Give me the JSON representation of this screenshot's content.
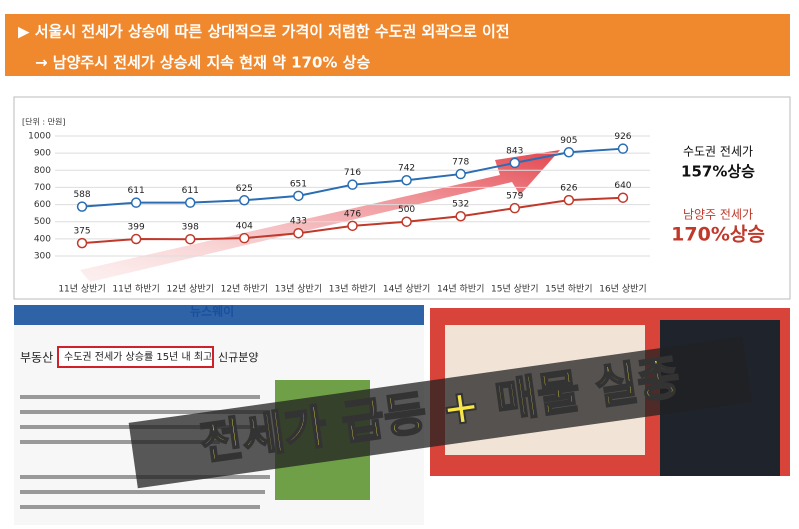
{
  "header": {
    "line1": "▶ 서울시 전세가 상승에 따른 상대적으로 가격이 저렴한 수도권 외곽으로 이전",
    "line2": "→ 남양주시 전세가 상승세 지속 현재 약 170% 상승"
  },
  "chart_data": {
    "type": "line",
    "unit_label": "[단위 : 만원]",
    "categories": [
      "11년 상반기",
      "11년 하반기",
      "12년 상반기",
      "12년 하반기",
      "13년 상반기",
      "13년 하반기",
      "14년 상반기",
      "14년 하반기",
      "15년 상반기",
      "15년 하반기",
      "16년 상반기"
    ],
    "series": [
      {
        "name": "수도권 전세가",
        "color": "#2a6db3",
        "values": [
          588,
          611,
          611,
          625,
          651,
          716,
          742,
          778,
          843,
          905,
          926
        ]
      },
      {
        "name": "남양주 전세가",
        "color": "#c0392b",
        "values": [
          375,
          399,
          398,
          404,
          433,
          476,
          500,
          532,
          579,
          626,
          640
        ]
      }
    ],
    "annotations": [
      "157%상승",
      "170%상승"
    ],
    "ylim": [
      300,
      1000
    ],
    "yticks": [
      300,
      400,
      500,
      600,
      700,
      800,
      900,
      1000
    ],
    "grid": true
  },
  "news": {
    "logo": "뉴스웨이",
    "section": "부동산",
    "headline": "수도권 전세가 상승률 15년 내 최고",
    "menu": "신규분양"
  },
  "banner": "전세가 급등 + 매물 실종"
}
